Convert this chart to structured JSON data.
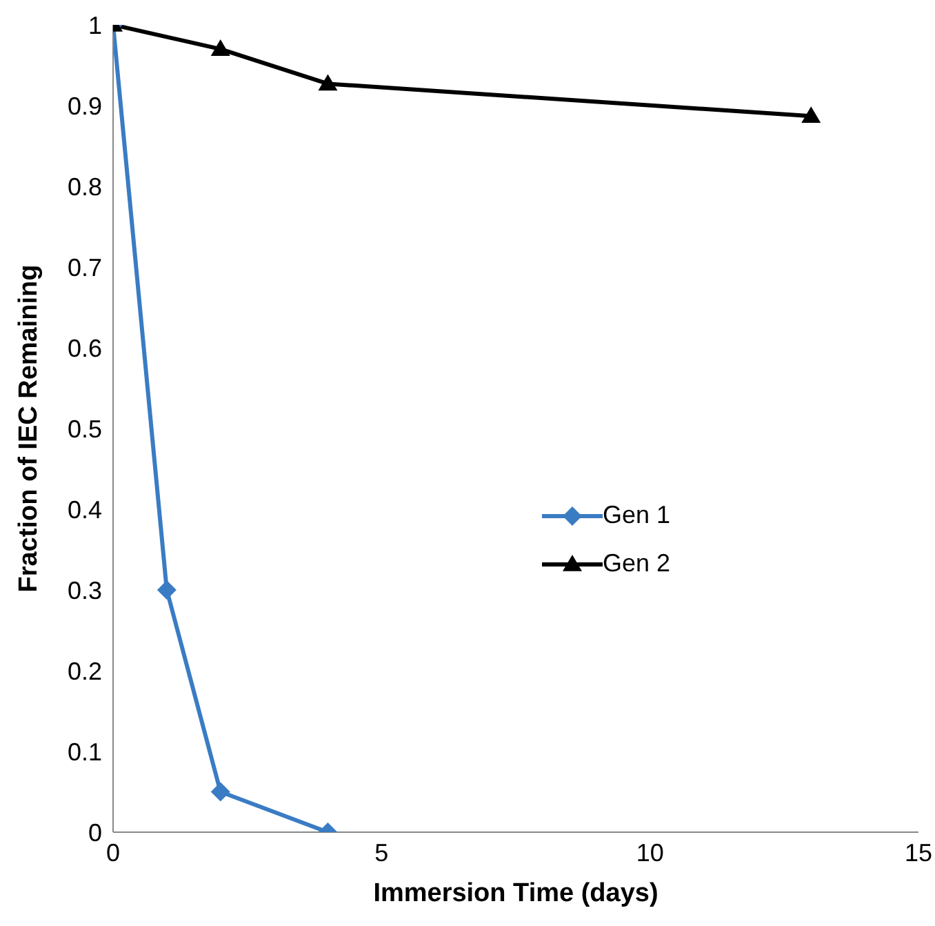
{
  "chart_data": {
    "type": "line",
    "xlabel": "Immersion Time (days)",
    "ylabel": "Fraction of IEC Remaining",
    "series": [
      {
        "name": "Gen 1",
        "color": "#3a7cc4",
        "marker": "diamond",
        "x": [
          0,
          1,
          2,
          4
        ],
        "values": [
          1,
          0.3,
          0.05,
          0
        ]
      },
      {
        "name": "Gen 2",
        "color": "#000000",
        "marker": "triangle",
        "x": [
          0,
          2,
          4,
          13
        ],
        "values": [
          1,
          0.97,
          0.927,
          0.887
        ]
      }
    ],
    "xlim": [
      0,
      15
    ],
    "xticks": [
      0,
      5,
      10,
      15
    ],
    "ylim": [
      0,
      1
    ],
    "yticks": [
      0,
      0.1,
      0.2,
      0.3,
      0.4,
      0.5,
      0.6,
      0.7,
      0.8,
      0.9,
      1
    ],
    "grid": false,
    "legend": "right",
    "line_style": "solid"
  }
}
